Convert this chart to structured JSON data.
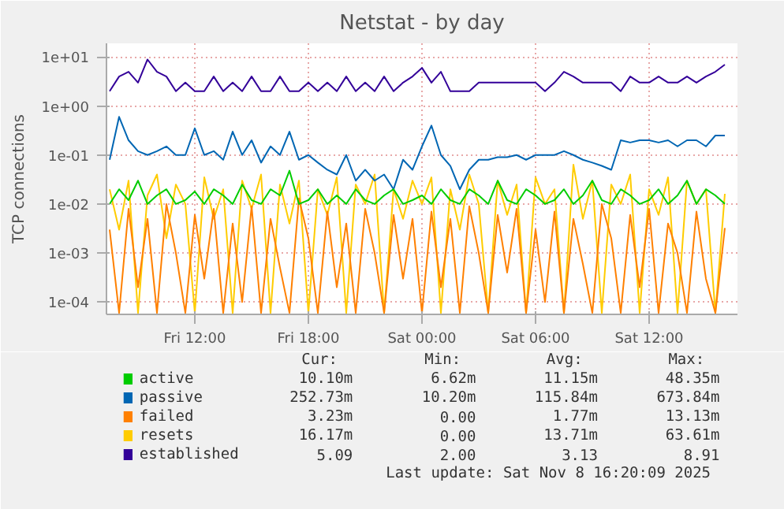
{
  "chart_data": {
    "type": "line",
    "title": "Netstat - by day",
    "ylabel": "TCP connections",
    "x": [
      "2025-11-07T07:30",
      "2025-11-07T08:00",
      "2025-11-07T08:30",
      "2025-11-07T09:00",
      "2025-11-07T09:30",
      "2025-11-07T10:00",
      "2025-11-07T10:30",
      "2025-11-07T11:00",
      "2025-11-07T11:30",
      "2025-11-07T12:00",
      "2025-11-07T12:30",
      "2025-11-07T13:00",
      "2025-11-07T13:30",
      "2025-11-07T14:00",
      "2025-11-07T14:30",
      "2025-11-07T15:00",
      "2025-11-07T15:30",
      "2025-11-07T16:00",
      "2025-11-07T16:30",
      "2025-11-07T17:00",
      "2025-11-07T17:30",
      "2025-11-07T18:00",
      "2025-11-07T18:30",
      "2025-11-07T19:00",
      "2025-11-07T19:30",
      "2025-11-07T20:00",
      "2025-11-07T20:30",
      "2025-11-07T21:00",
      "2025-11-07T21:30",
      "2025-11-07T22:00",
      "2025-11-07T22:30",
      "2025-11-07T23:00",
      "2025-11-07T23:30",
      "2025-11-08T00:00",
      "2025-11-08T00:30",
      "2025-11-08T01:00",
      "2025-11-08T01:30",
      "2025-11-08T02:00",
      "2025-11-08T02:30",
      "2025-11-08T03:00",
      "2025-11-08T03:30",
      "2025-11-08T04:00",
      "2025-11-08T04:30",
      "2025-11-08T05:00",
      "2025-11-08T05:30",
      "2025-11-08T06:00",
      "2025-11-08T06:30",
      "2025-11-08T07:00",
      "2025-11-08T07:30",
      "2025-11-08T08:00",
      "2025-11-08T08:30",
      "2025-11-08T09:00",
      "2025-11-08T09:30",
      "2025-11-08T10:00",
      "2025-11-08T10:30",
      "2025-11-08T11:00",
      "2025-11-08T11:30",
      "2025-11-08T12:00",
      "2025-11-08T12:30",
      "2025-11-08T13:00",
      "2025-11-08T13:30",
      "2025-11-08T14:00",
      "2025-11-08T14:30",
      "2025-11-08T15:00",
      "2025-11-08T15:30",
      "2025-11-08T16:00"
    ],
    "series": [
      {
        "name": "active",
        "color": "#00cc00",
        "values": [
          0.01,
          0.02,
          0.012,
          0.03,
          0.01,
          0.015,
          0.02,
          0.01,
          0.012,
          0.018,
          0.01,
          0.02,
          0.015,
          0.01,
          0.025,
          0.012,
          0.01,
          0.02,
          0.015,
          0.048,
          0.01,
          0.012,
          0.02,
          0.01,
          0.015,
          0.01,
          0.02,
          0.012,
          0.01,
          0.015,
          0.02,
          0.01,
          0.012,
          0.015,
          0.01,
          0.02,
          0.012,
          0.01,
          0.02,
          0.015,
          0.01,
          0.03,
          0.012,
          0.01,
          0.02,
          0.015,
          0.01,
          0.012,
          0.02,
          0.01,
          0.015,
          0.03,
          0.012,
          0.01,
          0.02,
          0.015,
          0.01,
          0.012,
          0.02,
          0.01,
          0.015,
          0.03,
          0.01,
          0.02,
          0.015,
          0.0101
        ]
      },
      {
        "name": "passive",
        "color": "#0066b3",
        "values": [
          0.08,
          0.6,
          0.2,
          0.12,
          0.1,
          0.12,
          0.15,
          0.1,
          0.1,
          0.35,
          0.1,
          0.12,
          0.08,
          0.3,
          0.1,
          0.2,
          0.07,
          0.15,
          0.1,
          0.3,
          0.08,
          0.1,
          0.07,
          0.05,
          0.04,
          0.1,
          0.03,
          0.05,
          0.03,
          0.04,
          0.02,
          0.08,
          0.05,
          0.15,
          0.4,
          0.1,
          0.06,
          0.02,
          0.05,
          0.08,
          0.08,
          0.09,
          0.09,
          0.1,
          0.08,
          0.1,
          0.1,
          0.1,
          0.12,
          0.1,
          0.08,
          0.07,
          0.06,
          0.05,
          0.2,
          0.18,
          0.2,
          0.2,
          0.18,
          0.2,
          0.15,
          0.2,
          0.2,
          0.15,
          0.25,
          0.25
        ]
      },
      {
        "name": "failed",
        "color": "#ff8000",
        "values": [
          0.003,
          6e-05,
          0.008,
          0.0002,
          0.005,
          6e-05,
          0.01,
          0.001,
          6e-05,
          0.006,
          0.0003,
          0.008,
          6e-05,
          0.004,
          0.0001,
          0.009,
          6e-05,
          0.005,
          0.0005,
          6e-05,
          0.013,
          0.002,
          6e-05,
          0.007,
          0.0002,
          0.004,
          6e-05,
          0.008,
          0.001,
          6e-05,
          0.006,
          0.0003,
          0.005,
          6e-05,
          0.007,
          0.0002,
          0.005,
          6e-05,
          0.009,
          0.001,
          6e-05,
          0.006,
          0.0004,
          0.008,
          6e-05,
          0.003,
          0.0001,
          0.007,
          6e-05,
          0.005,
          0.0006,
          6e-05,
          0.01,
          0.002,
          6e-05,
          0.006,
          0.0002,
          0.008,
          6e-05,
          0.004,
          0.001,
          6e-05,
          0.007,
          0.0003,
          6e-05,
          0.00323
        ]
      },
      {
        "name": "resets",
        "color": "#ffcc00",
        "values": [
          0.02,
          0.003,
          0.03,
          6e-05,
          0.015,
          0.04,
          0.002,
          0.025,
          0.01,
          6e-05,
          0.035,
          0.005,
          0.02,
          6e-05,
          0.03,
          0.008,
          0.04,
          6e-05,
          0.025,
          0.004,
          0.03,
          6e-05,
          0.02,
          0.006,
          0.035,
          6e-05,
          0.025,
          0.01,
          0.04,
          6e-05,
          0.02,
          0.005,
          0.03,
          0.01,
          0.035,
          6e-05,
          0.02,
          0.003,
          0.04,
          0.01,
          6e-05,
          0.03,
          0.006,
          0.025,
          6e-05,
          0.035,
          0.01,
          0.02,
          6e-05,
          0.0636,
          0.005,
          0.03,
          6e-05,
          0.025,
          0.01,
          0.04,
          6e-05,
          0.02,
          0.006,
          0.035,
          6e-05,
          0.03,
          0.01,
          0.02,
          6e-05,
          0.01617
        ]
      },
      {
        "name": "established",
        "color": "#330099",
        "values": [
          2.0,
          4,
          5,
          3,
          8.9,
          5,
          4,
          2,
          3,
          2,
          2,
          4,
          2,
          3,
          2,
          4,
          2,
          2,
          4,
          2,
          2,
          3,
          2,
          3,
          2,
          4,
          2,
          3,
          2,
          4,
          2,
          3,
          4,
          6,
          3,
          5,
          2,
          2,
          2,
          3,
          3,
          3,
          3,
          3,
          3,
          3,
          2,
          3,
          5,
          4,
          3,
          3,
          3,
          3,
          2,
          4,
          3,
          3,
          4,
          3,
          3,
          4,
          3,
          4,
          5,
          7
        ]
      }
    ],
    "xlim": [
      "2025-11-07T07:20",
      "2025-11-08T16:40"
    ],
    "xticks": [
      {
        "value": "2025-11-07T12:00",
        "label": "Fri 12:00"
      },
      {
        "value": "2025-11-07T18:00",
        "label": "Fri 18:00"
      },
      {
        "value": "2025-11-08T00:00",
        "label": "Sat 00:00"
      },
      {
        "value": "2025-11-08T06:00",
        "label": "Sat 06:00"
      },
      {
        "value": "2025-11-08T12:00",
        "label": "Sat 12:00"
      }
    ],
    "log": true,
    "ylim": [
      5.6e-05,
      19
    ],
    "yticks": [
      {
        "value": 0.0001,
        "label": "1e-04"
      },
      {
        "value": 0.001,
        "label": "1e-03"
      },
      {
        "value": 0.01,
        "label": "1e-02"
      },
      {
        "value": 0.1,
        "label": "1e-01"
      },
      {
        "value": 1,
        "label": "1e+00"
      },
      {
        "value": 10,
        "label": "1e+01"
      }
    ],
    "grid": true,
    "legend": "bottom",
    "annotations": [
      "Cur:",
      "Min:",
      "Avg:",
      "Max:",
      "10.10m",
      "6.62m",
      "11.15m",
      "48.35m",
      "252.73m",
      "10.20m",
      "115.84m",
      "673.84m",
      "3.23m",
      "0.00",
      "1.77m",
      "13.13m",
      "16.17m",
      "0.00",
      "13.71m",
      "63.61m",
      "5.09",
      "2.00",
      "3.13",
      "8.91",
      "Last update: Sat Nov  8 16:20:09 2025"
    ]
  }
}
